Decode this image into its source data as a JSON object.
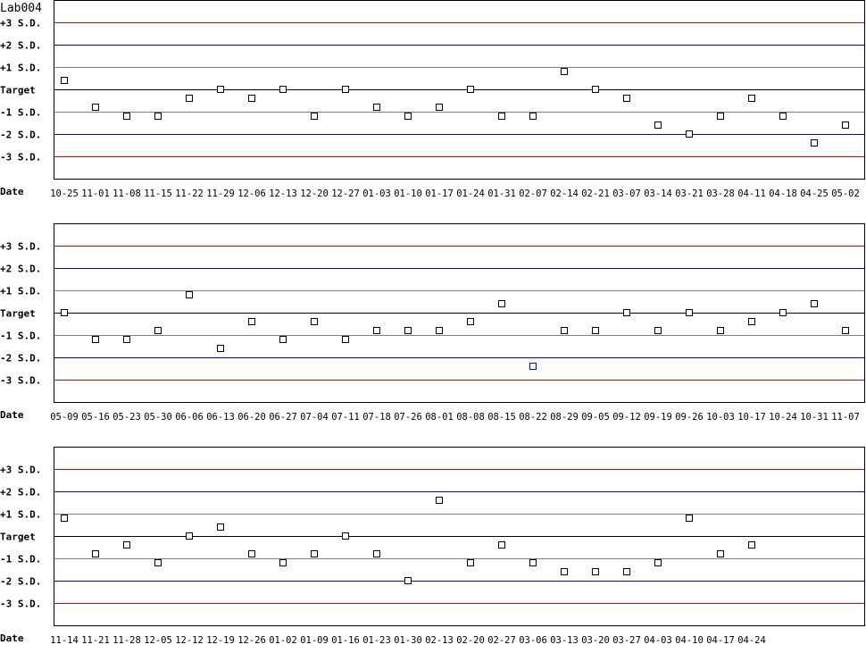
{
  "chart_data": [
    {
      "type": "scatter",
      "title": "Lab004",
      "xlabel": "Date",
      "y_labels": [
        "+3 S.D.",
        "+2 S.D.",
        "+1 S.D.",
        "Target",
        "-1 S.D.",
        "-2 S.D.",
        "-3 S.D."
      ],
      "ylim": [
        -4,
        4
      ],
      "line_colors": {
        "sd3": "#dd0000",
        "sd2": "#0000dd",
        "sd1": "#808080",
        "target": "#000000"
      },
      "point_color": "#000000",
      "flagged_color": "#0000ff",
      "x": [
        "10-25",
        "11-01",
        "11-08",
        "11-15",
        "11-22",
        "11-29",
        "12-06",
        "12-13",
        "12-20",
        "12-27",
        "01-03",
        "01-10",
        "01-17",
        "01-24",
        "01-31",
        "02-07",
        "02-14",
        "02-21",
        "03-07",
        "03-14",
        "03-21",
        "03-28",
        "04-11",
        "04-18",
        "04-25",
        "05-02"
      ],
      "values": [
        0.4,
        -0.8,
        -1.2,
        -1.2,
        -0.4,
        0,
        -0.4,
        0,
        -1.2,
        0,
        -0.8,
        -1.2,
        -0.8,
        0,
        -1.2,
        -1.2,
        0.8,
        0,
        -0.4,
        -1.6,
        -2.0,
        -1.2,
        -0.4,
        -1.2,
        -2.4,
        -1.6
      ],
      "flagged": []
    },
    {
      "type": "scatter",
      "xlabel": "Date",
      "y_labels": [
        "+3 S.D.",
        "+2 S.D.",
        "+1 S.D.",
        "Target",
        "-1 S.D.",
        "-2 S.D.",
        "-3 S.D."
      ],
      "ylim": [
        -4,
        4
      ],
      "x": [
        "05-09",
        "05-16",
        "05-23",
        "05-30",
        "06-06",
        "06-13",
        "06-20",
        "06-27",
        "07-04",
        "07-11",
        "07-18",
        "07-26",
        "08-01",
        "08-08",
        "08-15",
        "08-22",
        "08-29",
        "09-05",
        "09-12",
        "09-19",
        "09-26",
        "10-03",
        "10-17",
        "10-24",
        "10-31",
        "11-07"
      ],
      "values": [
        0,
        -1.2,
        -1.2,
        -0.8,
        0.8,
        -1.6,
        -0.4,
        -1.2,
        -0.4,
        -1.2,
        -0.8,
        -0.8,
        -0.8,
        -0.4,
        0.4,
        -2.4,
        -0.8,
        -0.8,
        0,
        -0.8,
        0,
        -0.8,
        -0.4,
        0,
        0.4,
        -0.8
      ],
      "flagged": [
        "08-22"
      ]
    },
    {
      "type": "scatter",
      "xlabel": "Date",
      "y_labels": [
        "+3 S.D.",
        "+2 S.D.",
        "+1 S.D.",
        "Target",
        "-1 S.D.",
        "-2 S.D.",
        "-3 S.D."
      ],
      "ylim": [
        -4,
        4
      ],
      "x": [
        "11-14",
        "11-21",
        "11-28",
        "12-05",
        "12-12",
        "12-19",
        "12-26",
        "01-02",
        "01-09",
        "01-16",
        "01-23",
        "01-30",
        "02-13",
        "02-20",
        "02-27",
        "03-06",
        "03-13",
        "03-20",
        "03-27",
        "04-03",
        "04-10",
        "04-17",
        "04-24"
      ],
      "values": [
        0.8,
        -0.8,
        -0.4,
        -1.2,
        0,
        0.4,
        -0.8,
        -1.2,
        -0.8,
        0,
        -0.8,
        -2.0,
        1.6,
        -1.2,
        -0.4,
        -1.2,
        -1.6,
        -1.6,
        -1.6,
        -1.2,
        0.8,
        -0.8,
        -0.4
      ],
      "flagged": []
    }
  ]
}
